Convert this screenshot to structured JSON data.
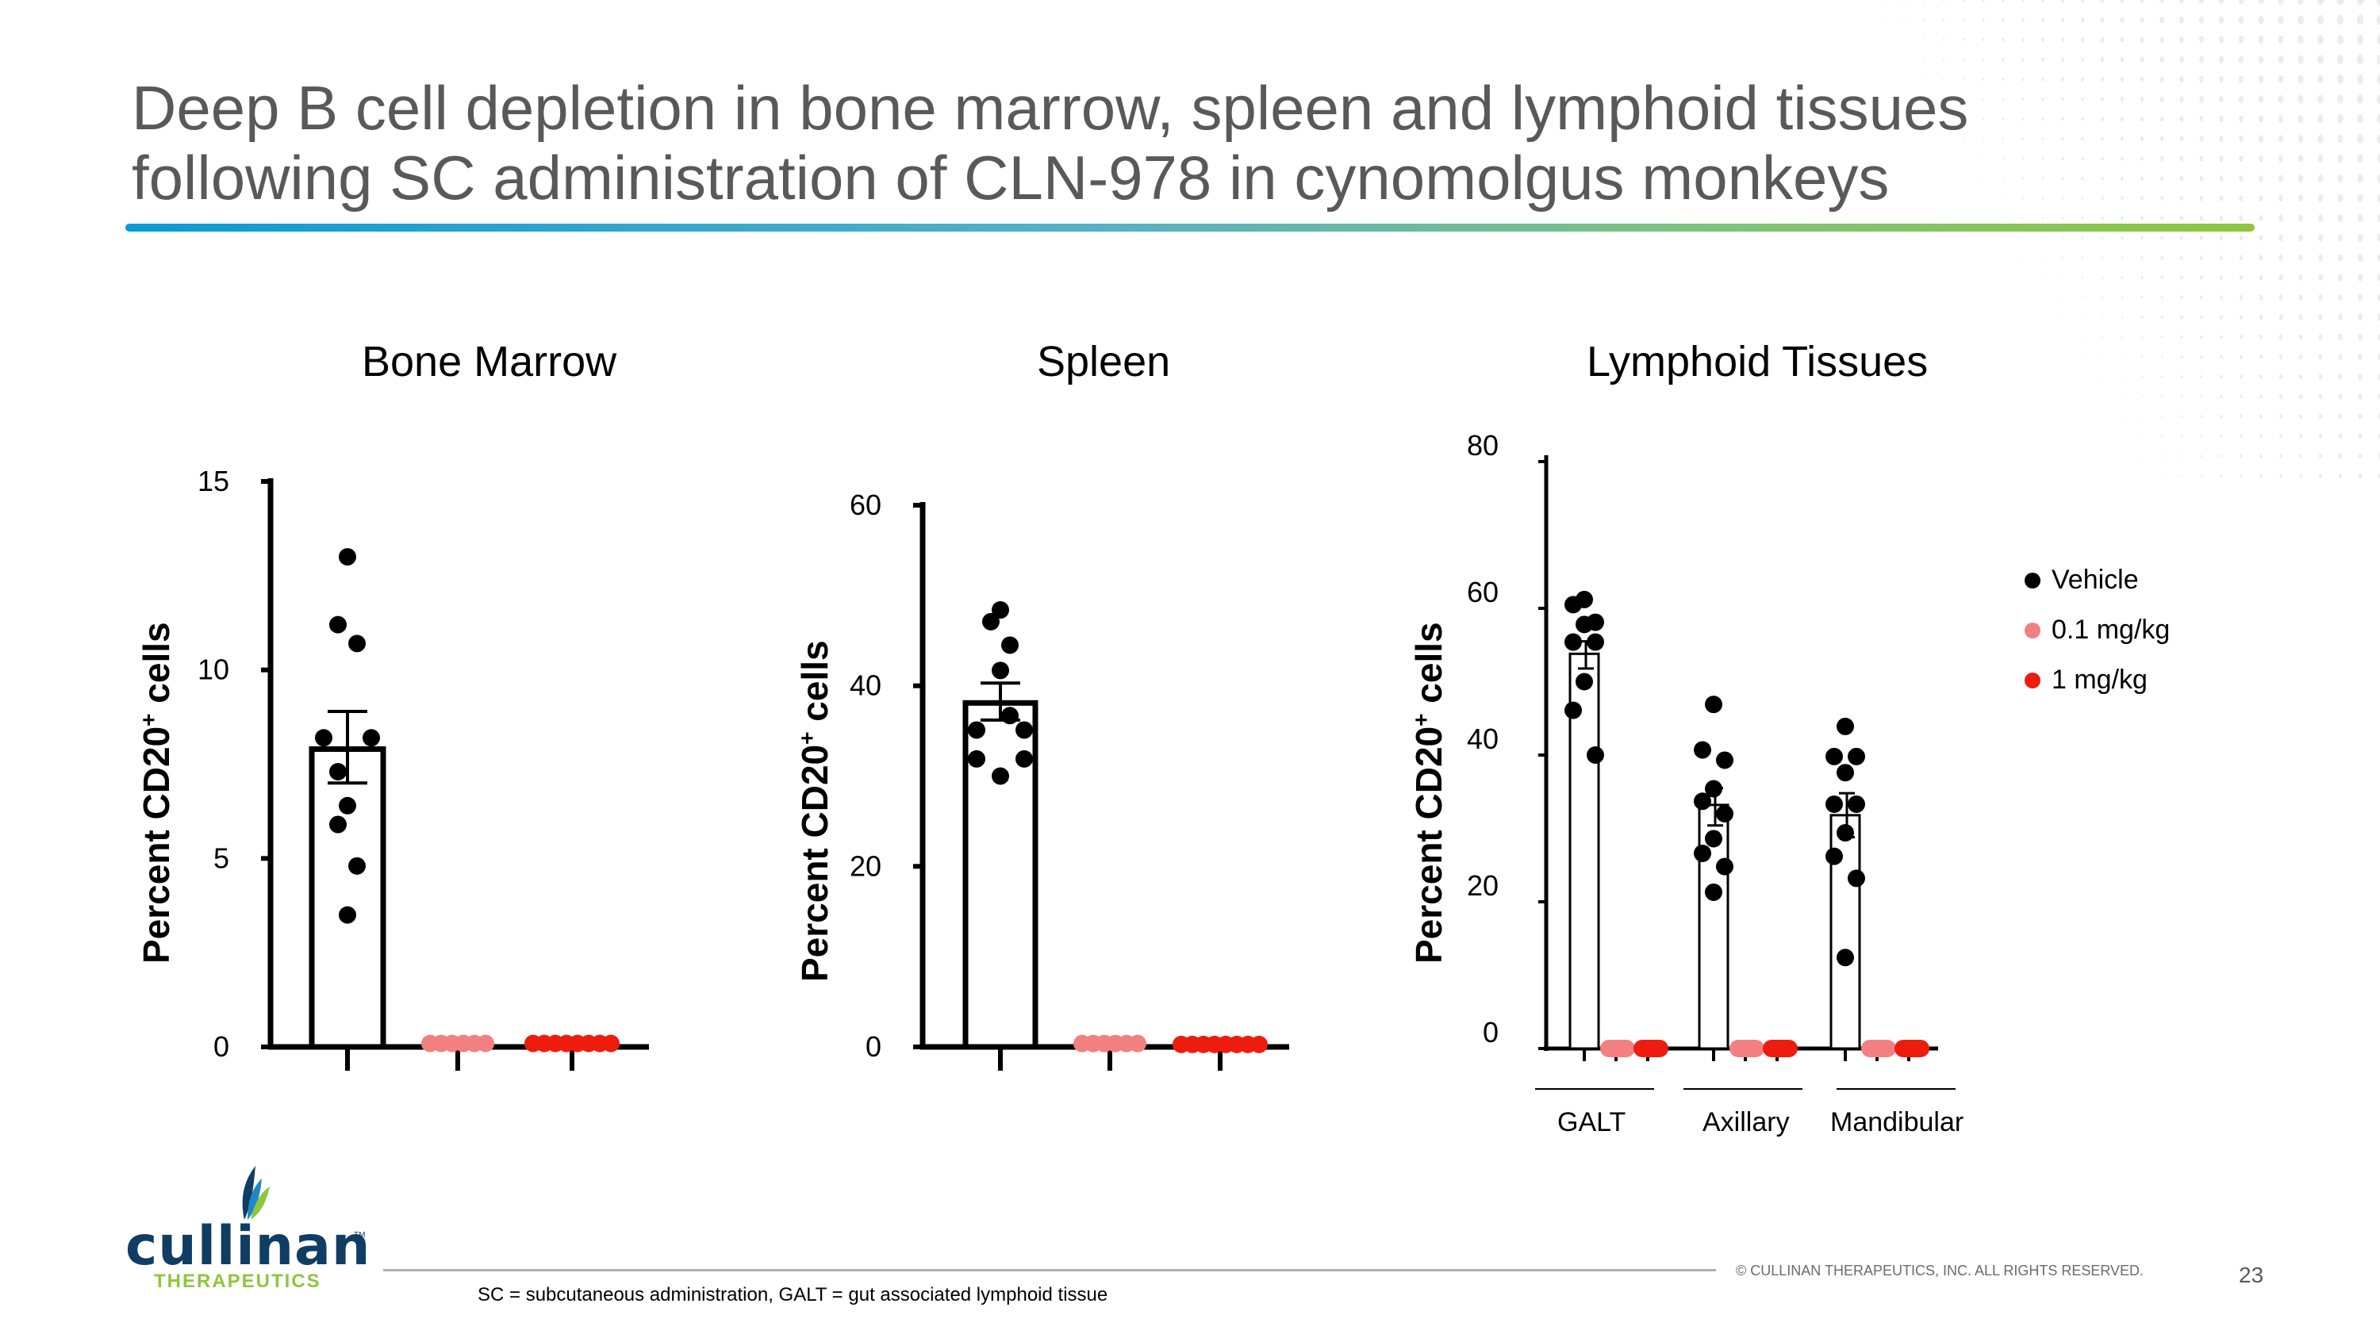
{
  "slide": {
    "title_line1": "Deep B cell depletion in bone marrow, spleen and lymphoid tissues",
    "title_line2": "following SC administration of CLN-978 in cynomolgus monkeys",
    "page_number": "23",
    "copyright": "© CULLINAN THERAPEUTICS, INC. ALL RIGHTS RESERVED.",
    "footnote": "SC = subcutaneous administration, GALT = gut associated lymphoid tissue",
    "logo": {
      "wordmark": "cullinan",
      "tm": "TM",
      "subtitle": "THERAPEUTICS"
    },
    "colors": {
      "title": "#595959",
      "rule_start": "#0b9ad6",
      "rule_end": "#8dc63f",
      "vehicle": "#000000",
      "low_dose": "#f28080",
      "high_dose": "#ee1c0e",
      "logo_blue": "#0f3d63",
      "logo_green": "#8dc63f"
    }
  },
  "legend": [
    {
      "label": "Vehicle",
      "color": "#000000"
    },
    {
      "label": "0.1 mg/kg",
      "color": "#f28080"
    },
    {
      "label": "1 mg/kg",
      "color": "#ee1c0e"
    }
  ],
  "chart_data": [
    {
      "type": "bar",
      "title": "Bone Marrow",
      "ylabel": "Percent CD20+ cells",
      "ylim": [
        0,
        15
      ],
      "yticks": [
        0,
        5,
        10,
        15
      ],
      "categories": [
        "Vehicle",
        "0.1 mg/kg",
        "1 mg/kg"
      ],
      "series": [
        {
          "name": "Vehicle",
          "mean": 7.9,
          "sem": [
            7.0,
            8.9
          ],
          "points": [
            13.0,
            11.2,
            10.7,
            8.2,
            8.2,
            7.3,
            6.4,
            5.9,
            4.8,
            3.5
          ]
        },
        {
          "name": "0.1 mg/kg",
          "mean": 0.05,
          "points": [
            0.05,
            0.05,
            0.05,
            0.05,
            0.05,
            0.05
          ]
        },
        {
          "name": "1 mg/kg",
          "mean": 0.05,
          "points": [
            0.05,
            0.05,
            0.05,
            0.05,
            0.05,
            0.05,
            0.05,
            0.05
          ]
        }
      ]
    },
    {
      "type": "bar",
      "title": "Spleen",
      "ylabel": "Percent CD20+ cells",
      "ylim": [
        0,
        60
      ],
      "yticks": [
        0,
        20,
        40,
        60
      ],
      "categories": [
        "Vehicle",
        "0.1 mg/kg",
        "1 mg/kg"
      ],
      "series": [
        {
          "name": "Vehicle",
          "mean": 38.1,
          "sem": [
            36.2,
            40.3
          ],
          "points": [
            48.4,
            47.1,
            44.5,
            41.7,
            36.7,
            35.1,
            35.1,
            31.9,
            31.9,
            30.0
          ]
        },
        {
          "name": "0.1 mg/kg",
          "mean": 0.2,
          "points": [
            0.2,
            0.2,
            0.2,
            0.2,
            0.2,
            0.2
          ]
        },
        {
          "name": "1 mg/kg",
          "mean": 0.1,
          "points": [
            0.1,
            0.1,
            0.1,
            0.1,
            0.1,
            0.1,
            0.1,
            0.1
          ]
        }
      ]
    },
    {
      "type": "bar",
      "title": "Lymphoid Tissues",
      "ylabel": "Percent CD20+ cells",
      "ylim": [
        0,
        80
      ],
      "yticks": [
        0,
        20,
        40,
        60,
        80
      ],
      "categories": [
        "GALT",
        "Axillary",
        "Mandibular"
      ],
      "series": [
        {
          "name": "Vehicle",
          "means": [
            53.8,
            33.2,
            31.8
          ],
          "sems": [
            [
              51.8,
              55.5
            ],
            [
              30.4,
              35.5
            ],
            [
              28.8,
              34.8
            ]
          ],
          "points": [
            [
              61.2,
              60.5,
              58.1,
              57.8,
              55.4,
              55.4,
              50.0,
              46.1,
              40.0
            ],
            [
              46.9,
              40.7,
              39.3,
              35.4,
              33.7,
              32.0,
              28.6,
              26.6,
              24.8,
              21.3
            ],
            [
              43.9,
              39.8,
              39.8,
              37.6,
              33.3,
              33.3,
              29.4,
              26.2,
              23.2,
              12.4
            ]
          ]
        },
        {
          "name": "0.1 mg/kg",
          "means": [
            0.1,
            0.1,
            0.1
          ]
        },
        {
          "name": "1 mg/kg",
          "means": [
            0.1,
            0.1,
            0.1
          ]
        }
      ],
      "legend_position": "right"
    }
  ]
}
